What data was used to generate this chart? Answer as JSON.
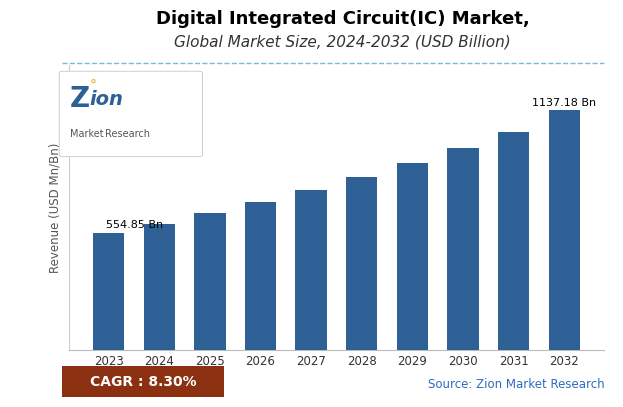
{
  "title_line1": "Digital Integrated Circuit(IC) Market,",
  "title_line2": "Global Market Size, 2024-2032 (USD Billion)",
  "years": [
    2023,
    2024,
    2025,
    2026,
    2027,
    2028,
    2029,
    2030,
    2031,
    2032
  ],
  "values": [
    554.85,
    599.0,
    648.0,
    700.0,
    757.0,
    818.0,
    885.0,
    957.0,
    1035.0,
    1137.18
  ],
  "bar_color": "#2e6095",
  "ylabel": "Revenue (USD Mn/Bn)",
  "ylim": [
    0,
    1350
  ],
  "first_bar_label": "554.85 Bn",
  "last_bar_label": "1137.18 Bn",
  "cagr_text": "CAGR : 8.30%",
  "cagr_bg_color": "#8B3010",
  "source_text": "Source: Zion Market Research",
  "source_color": "#2d6bbf",
  "title_fontsize": 13,
  "subtitle_fontsize": 11,
  "background_color": "#ffffff",
  "dashed_line_color": "#7abcd4",
  "logo_z_color": "#2e6095",
  "logo_text_color": "#2e6095",
  "logo_dot_color": "#f5a623",
  "logo_sub_color": "#555555"
}
